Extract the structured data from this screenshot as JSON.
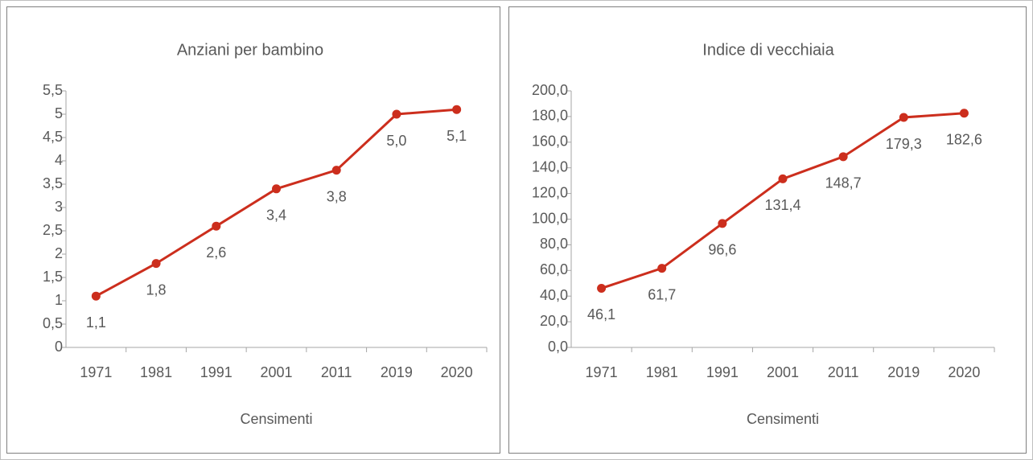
{
  "chart_data": [
    {
      "type": "line",
      "title": "Anziani per bambino",
      "x_label": "Censimenti",
      "categories": [
        "1971",
        "1981",
        "1991",
        "2001",
        "2011",
        "2019",
        "2020"
      ],
      "series": [
        {
          "color": "#cc2e1d",
          "values": [
            1.1,
            1.8,
            2.6,
            3.4,
            3.8,
            5.0,
            5.1
          ],
          "value_labels": [
            "1,1",
            "1,8",
            "2,6",
            "3,4",
            "3,8",
            "5,0",
            "5,1"
          ]
        }
      ],
      "ylim": [
        0,
        5.5
      ],
      "yticks": [
        0,
        {
          "value": 0.5,
          "label": "0,5"
        },
        1,
        {
          "value": 1.5,
          "label": "1,5"
        },
        2,
        {
          "value": 2.5,
          "label": "2,5"
        },
        3,
        {
          "value": 3.5,
          "label": "3,5"
        },
        4,
        {
          "value": 4.5,
          "label": "4,5"
        },
        5,
        {
          "value": 5.5,
          "label": "5,5"
        }
      ]
    },
    {
      "type": "line",
      "title": "Indice di vecchiaia",
      "x_label": "Censimenti",
      "categories": [
        "1971",
        "1981",
        "1991",
        "2001",
        "2011",
        "2019",
        "2020"
      ],
      "series": [
        {
          "color": "#cc2e1d",
          "values": [
            46.1,
            61.7,
            96.6,
            131.4,
            148.7,
            179.3,
            182.6
          ],
          "value_labels": [
            "46,1",
            "61,7",
            "96,6",
            "131,4",
            "148,7",
            "179,3",
            "182,6"
          ]
        }
      ],
      "ylim": [
        0,
        200
      ],
      "yticks": [
        {
          "value": 0,
          "label": "0,0"
        },
        {
          "value": 20,
          "label": "20,0"
        },
        {
          "value": 40,
          "label": "40,0"
        },
        {
          "value": 60,
          "label": "60,0"
        },
        {
          "value": 80,
          "label": "80,0"
        },
        {
          "value": 100,
          "label": "100,0"
        },
        {
          "value": 120,
          "label": "120,0"
        },
        {
          "value": 140,
          "label": "140,0"
        },
        {
          "value": 160,
          "label": "160,0"
        },
        {
          "value": 180,
          "label": "180,0"
        },
        {
          "value": 200,
          "label": "200,0"
        }
      ]
    }
  ]
}
